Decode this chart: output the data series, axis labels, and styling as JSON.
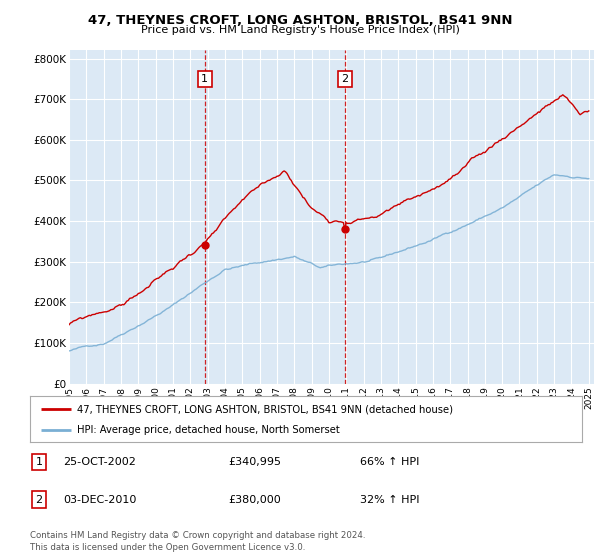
{
  "title": "47, THEYNES CROFT, LONG ASHTON, BRISTOL, BS41 9NN",
  "subtitle": "Price paid vs. HM Land Registry's House Price Index (HPI)",
  "ylabel_ticks": [
    "£0",
    "£100K",
    "£200K",
    "£300K",
    "£400K",
    "£500K",
    "£600K",
    "£700K",
    "£800K"
  ],
  "ytick_values": [
    0,
    100000,
    200000,
    300000,
    400000,
    500000,
    600000,
    700000,
    800000
  ],
  "ylim": [
    0,
    820000
  ],
  "background_color": "#dce9f5",
  "grid_color": "#ffffff",
  "sale1_year": 2002.83,
  "sale1_price": 340995,
  "sale2_year": 2010.92,
  "sale2_price": 380000,
  "legend_entry1": "47, THEYNES CROFT, LONG ASHTON, BRISTOL, BS41 9NN (detached house)",
  "legend_entry2": "HPI: Average price, detached house, North Somerset",
  "table_row1": [
    "1",
    "25-OCT-2002",
    "£340,995",
    "66% ↑ HPI"
  ],
  "table_row2": [
    "2",
    "03-DEC-2010",
    "£380,000",
    "32% ↑ HPI"
  ],
  "footer": "Contains HM Land Registry data © Crown copyright and database right 2024.\nThis data is licensed under the Open Government Licence v3.0.",
  "red_color": "#cc0000",
  "blue_color": "#7aafd4"
}
